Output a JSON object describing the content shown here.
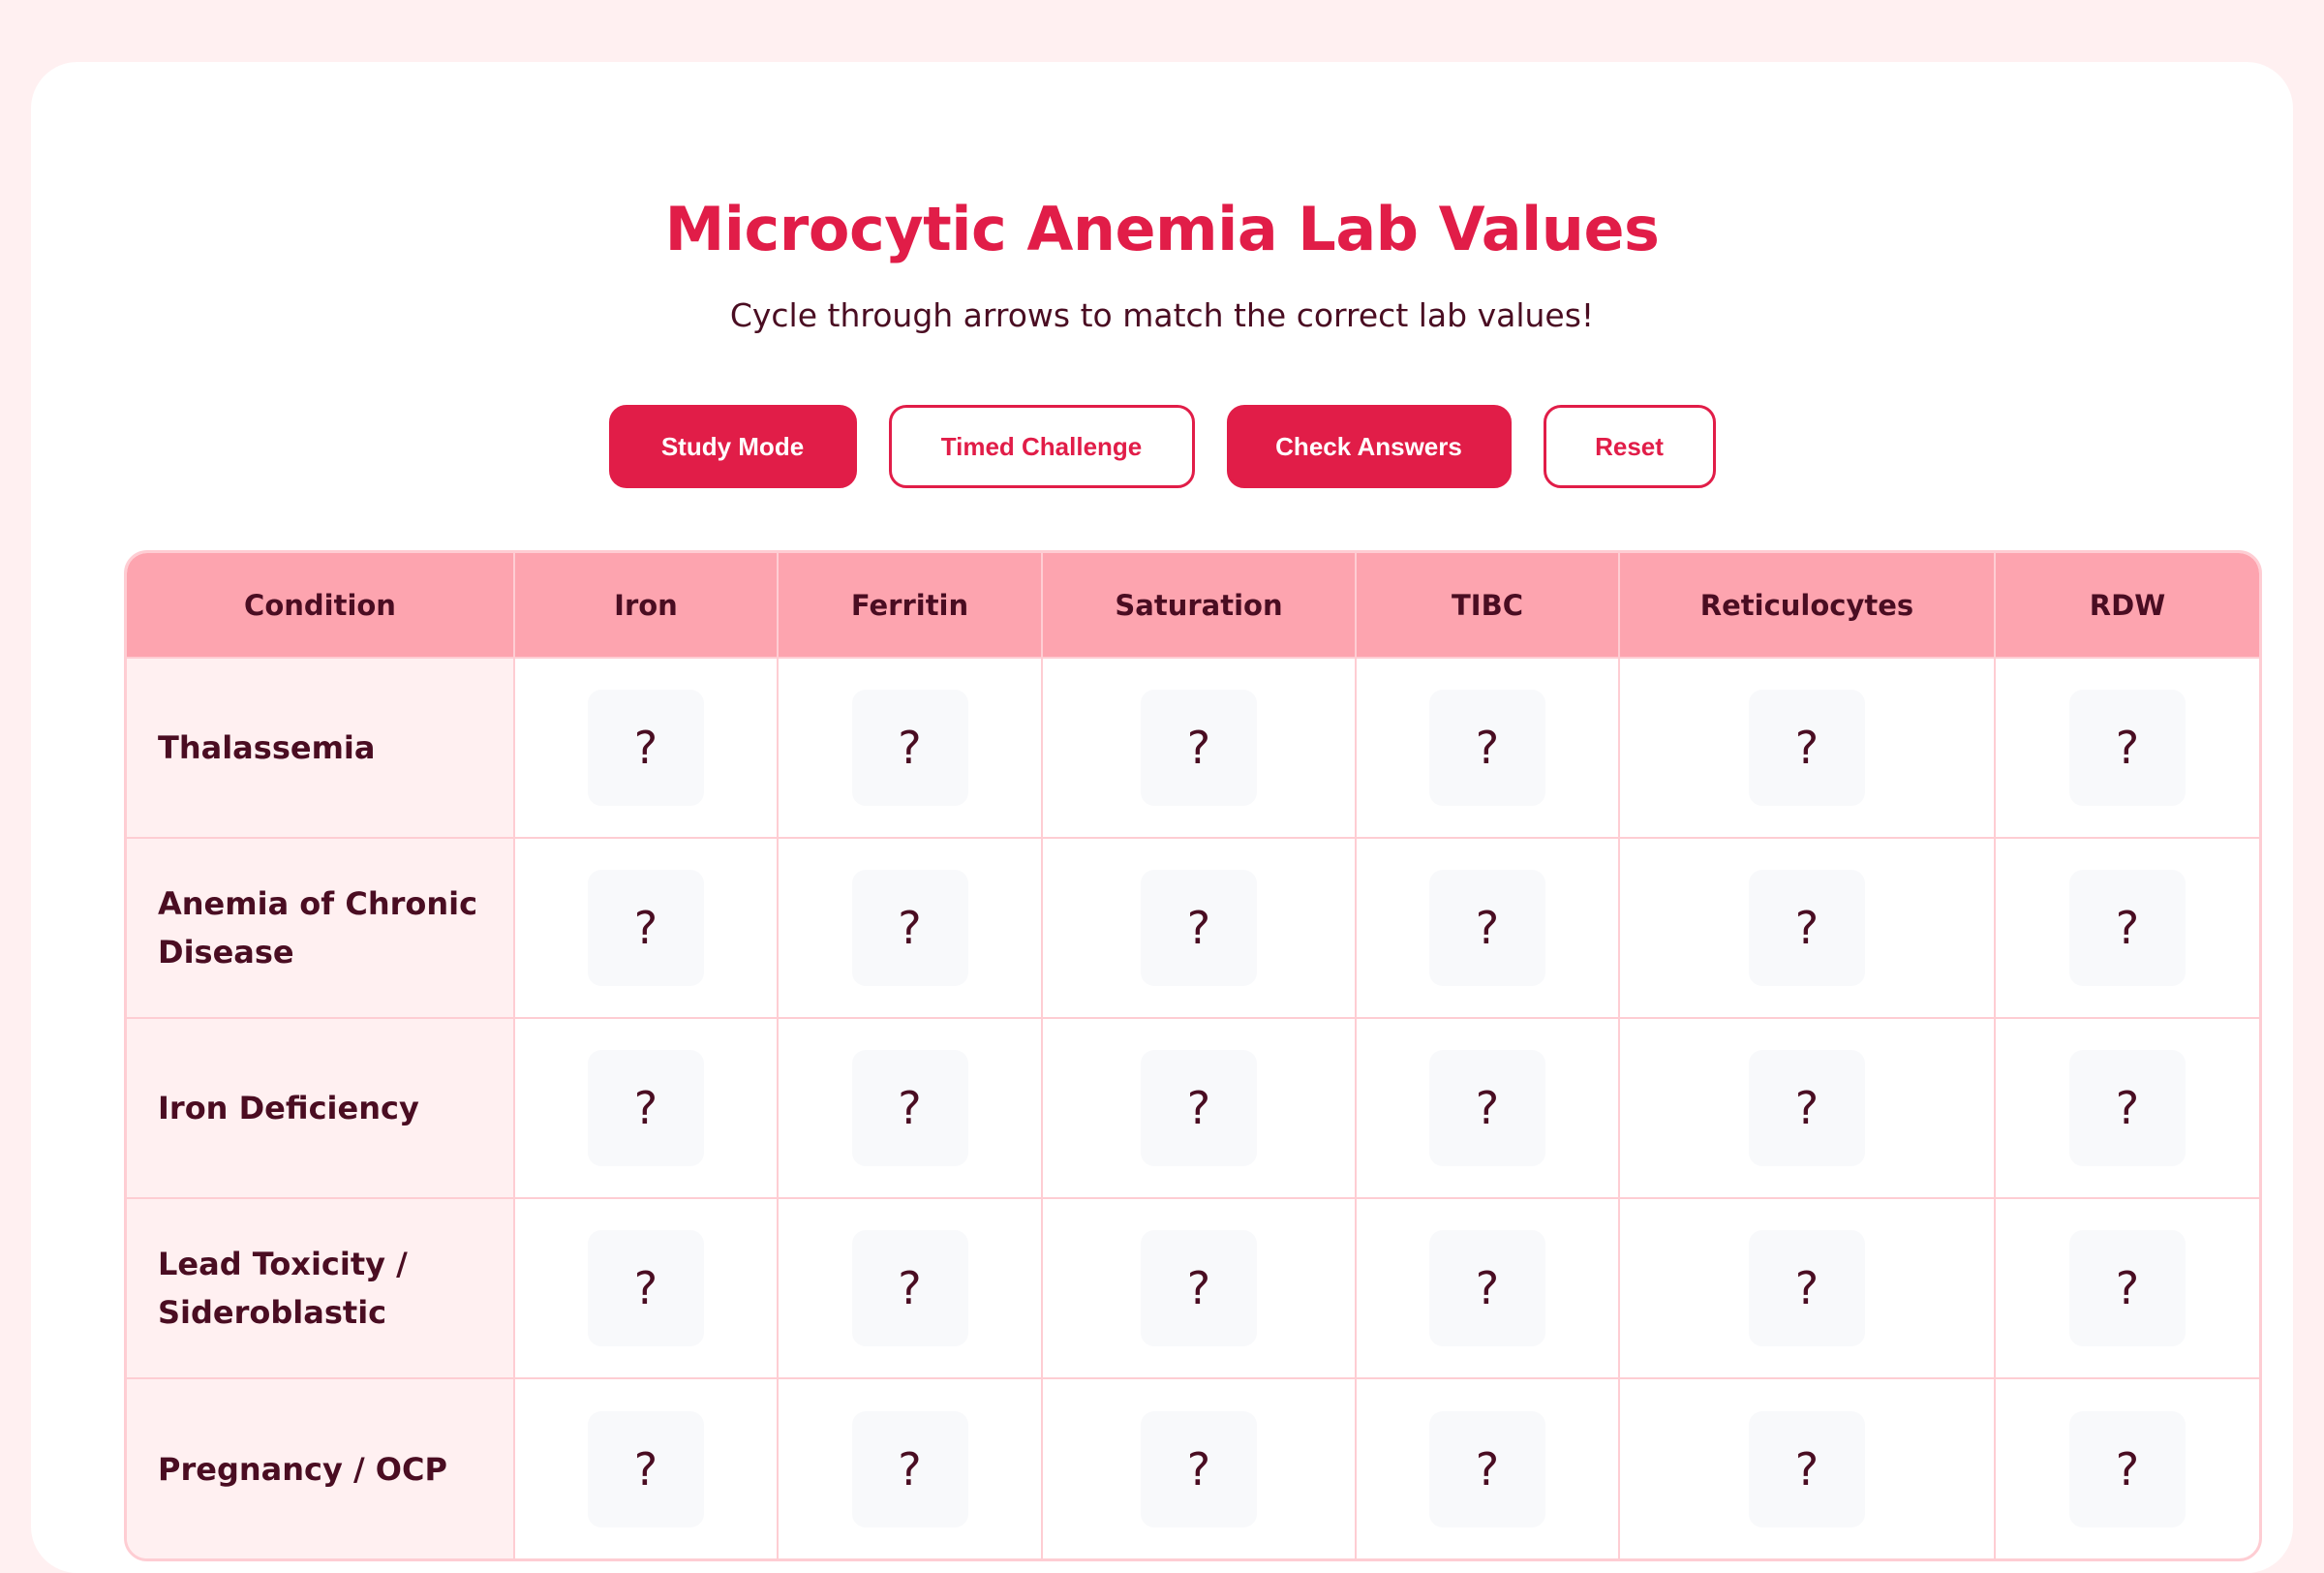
{
  "header": {
    "title": "Microcytic Anemia Lab Values",
    "subtitle": "Cycle through arrows to match the correct lab values!"
  },
  "buttons": {
    "study_mode": "Study Mode",
    "timed_challenge": "Timed Challenge",
    "check_answers": "Check Answers",
    "reset": "Reset"
  },
  "table": {
    "columns": [
      "Condition",
      "Iron",
      "Ferritin",
      "Saturation",
      "TIBC",
      "Reticulocytes",
      "RDW"
    ],
    "rows": [
      {
        "condition": "Thalassemia",
        "values": [
          "?",
          "?",
          "?",
          "?",
          "?",
          "?"
        ]
      },
      {
        "condition": "Anemia of Chronic Disease",
        "values": [
          "?",
          "?",
          "?",
          "?",
          "?",
          "?"
        ]
      },
      {
        "condition": "Iron Deficiency",
        "values": [
          "?",
          "?",
          "?",
          "?",
          "?",
          "?"
        ]
      },
      {
        "condition": "Lead Toxicity / Sideroblastic",
        "values": [
          "?",
          "?",
          "?",
          "?",
          "?",
          "?"
        ]
      },
      {
        "condition": "Pregnancy / OCP",
        "values": [
          "?",
          "?",
          "?",
          "?",
          "?",
          "?"
        ]
      }
    ]
  },
  "colors": {
    "accent": "#e11d48",
    "header_bg": "#fda4af",
    "page_bg": "#fff0f1",
    "text": "#4a0d22"
  }
}
